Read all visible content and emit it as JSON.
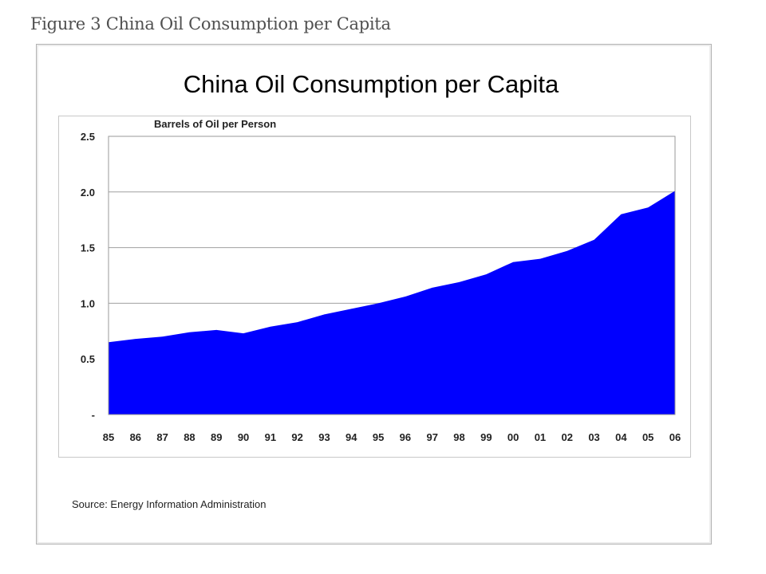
{
  "caption": "Figure 3 China Oil Consumption per Capita",
  "source": "Source: Energy Information Administration",
  "colors": {
    "area": "#0000ff",
    "grid": "#a0a0a0",
    "frame": "#c8c8c8"
  },
  "chart_data": {
    "type": "area",
    "title": "China Oil Consumption per Capita",
    "ylabel": "Barrels of Oil per Person",
    "xlabel": "",
    "categories": [
      "85",
      "86",
      "87",
      "88",
      "89",
      "90",
      "91",
      "92",
      "93",
      "94",
      "95",
      "96",
      "97",
      "98",
      "99",
      "00",
      "01",
      "02",
      "03",
      "04",
      "05",
      "06"
    ],
    "values": [
      0.65,
      0.68,
      0.7,
      0.74,
      0.76,
      0.73,
      0.79,
      0.83,
      0.9,
      0.95,
      1.0,
      1.06,
      1.14,
      1.19,
      1.26,
      1.37,
      1.4,
      1.47,
      1.57,
      1.8,
      1.86,
      2.01
    ],
    "yticks": [
      "-",
      "0.5",
      "1.0",
      "1.5",
      "2.0",
      "2.5"
    ],
    "ylim": [
      0,
      2.5
    ],
    "grid": true,
    "legend": "none"
  }
}
